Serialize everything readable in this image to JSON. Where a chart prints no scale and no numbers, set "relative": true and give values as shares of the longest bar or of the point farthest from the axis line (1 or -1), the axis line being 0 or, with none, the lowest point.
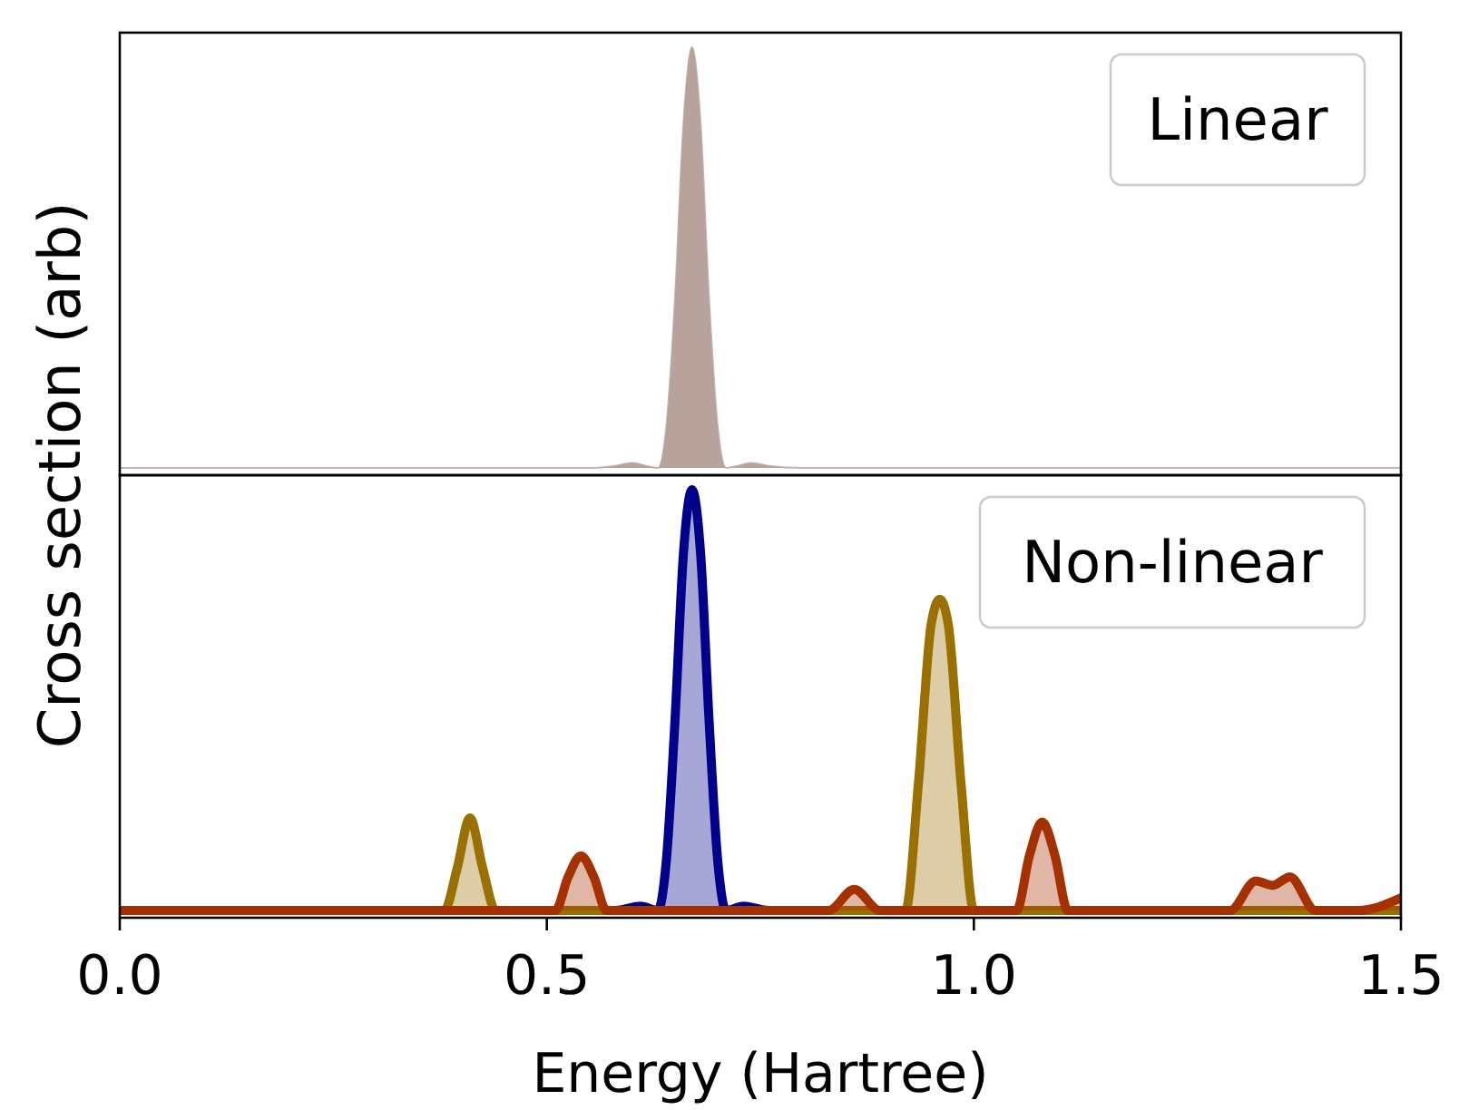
{
  "chart_data": [
    {
      "type": "area",
      "relative": true,
      "ylabel": "Cross section (arb)",
      "annotations": [
        "Linear"
      ],
      "xlim": [
        0,
        1.5
      ],
      "xticks": [
        0,
        0.5,
        1.0,
        1.5
      ],
      "tick_labels": false,
      "series": [
        {
          "color": "#b8a29c",
          "x": [
            0,
            0.55,
            0.58,
            0.6,
            0.62,
            0.63,
            0.64,
            0.65,
            0.66,
            0.67,
            0.68,
            0.69,
            0.7,
            0.71,
            0.72,
            0.74,
            0.76,
            0.8,
            1.5
          ],
          "values": [
            0,
            0,
            0.005,
            0.012,
            0.003,
            0,
            0.1,
            0.4,
            0.82,
            1,
            0.82,
            0.4,
            0.1,
            0,
            0.003,
            0.012,
            0.005,
            0,
            0
          ]
        }
      ]
    },
    {
      "type": "area",
      "relative": true,
      "xlabel": "Energy (Hartree)",
      "annotations": [
        "Non-linear"
      ],
      "xlim": [
        0,
        1.5
      ],
      "xticks": [
        {
          "value": 0,
          "label": "0.0"
        },
        0.5,
        {
          "value": 1.0,
          "label": "1.0"
        },
        1.5
      ],
      "tick_labels": "x",
      "series": [
        {
          "color": "#00008b",
          "x": [
            0,
            0.58,
            0.61,
            0.63,
            0.64,
            0.65,
            0.66,
            0.67,
            0.68,
            0.69,
            0.7,
            0.71,
            0.73,
            0.76,
            1.5
          ],
          "values": [
            0,
            0,
            0.01,
            0,
            0.12,
            0.45,
            0.85,
            1,
            0.85,
            0.45,
            0.12,
            0,
            0.01,
            0,
            0
          ]
        },
        {
          "color": "#9a7000",
          "x": [
            0,
            0.38,
            0.395,
            0.41,
            0.425,
            0.44,
            0.92,
            0.935,
            0.95,
            0.96,
            0.97,
            0.985,
            1.0,
            1.5
          ],
          "values": [
            0,
            0,
            0.1,
            0.22,
            0.1,
            0,
            0,
            0.3,
            0.68,
            0.74,
            0.68,
            0.3,
            0,
            0
          ]
        },
        {
          "color": "#a53000",
          "x": [
            0,
            0.51,
            0.525,
            0.54,
            0.555,
            0.57,
            0.83,
            0.86,
            0.89,
            1.05,
            1.065,
            1.08,
            1.095,
            1.11,
            1.3,
            1.33,
            1.35,
            1.37,
            1.4,
            1.45,
            1.5
          ],
          "values": [
            0,
            0,
            0.08,
            0.13,
            0.08,
            0,
            0,
            0.05,
            0,
            0,
            0.13,
            0.21,
            0.13,
            0,
            0,
            0.07,
            0.06,
            0.08,
            0,
            0,
            0.03
          ]
        }
      ]
    }
  ]
}
